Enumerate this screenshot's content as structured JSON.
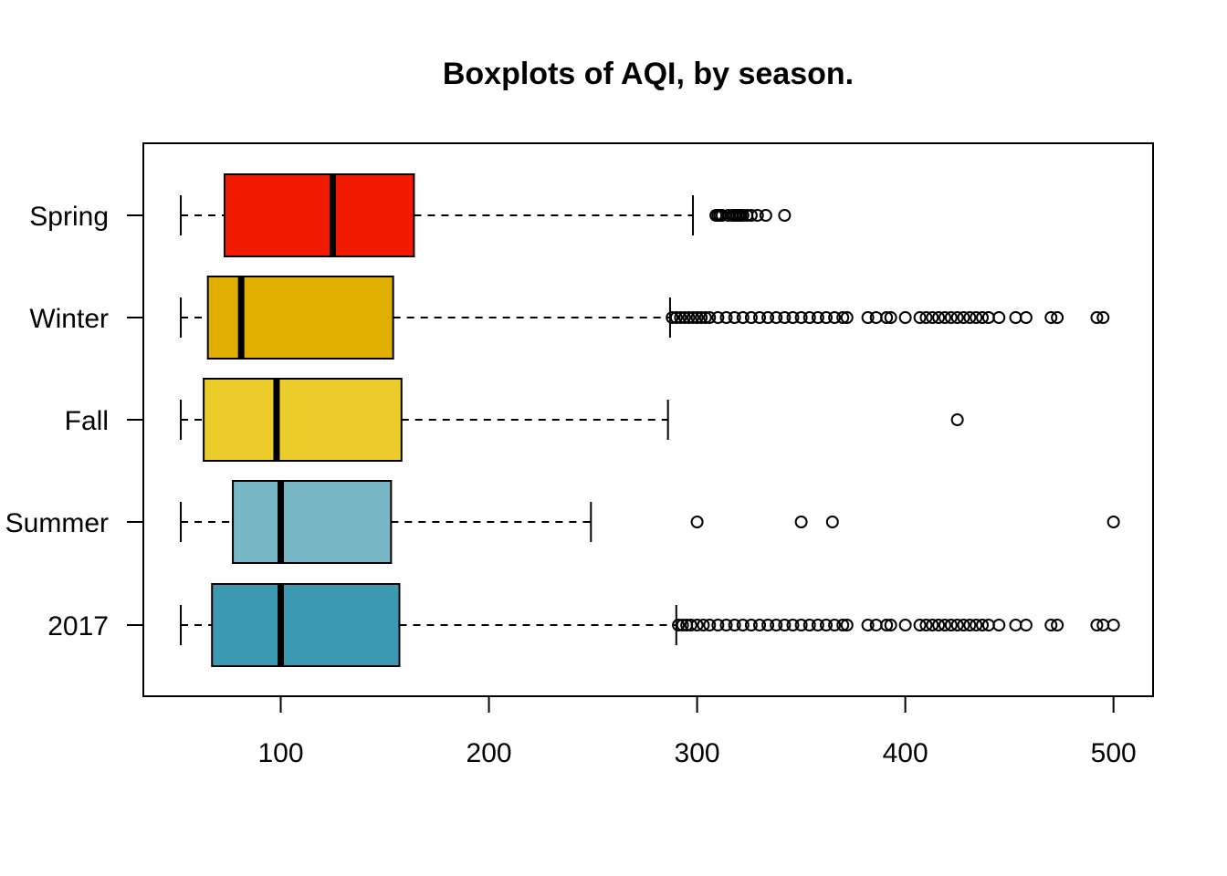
{
  "chart_data": {
    "type": "boxplot",
    "orientation": "horizontal",
    "title": "Boxplots of AQI, by season.",
    "xlabel": "",
    "ylabel": "",
    "xlim": [
      34,
      519
    ],
    "x_ticks": [
      100,
      200,
      300,
      400,
      500
    ],
    "x_tick_labels": [
      "100",
      "200",
      "300",
      "400",
      "500"
    ],
    "grid": false,
    "legend": "none",
    "categories": [
      "Spring",
      "Winter",
      "Fall",
      "Summer",
      "2017"
    ],
    "series": [
      {
        "name": "Spring",
        "color": "#F21A00",
        "whisker_low": 52,
        "q1": 73,
        "median": 125,
        "q3": 164,
        "whisker_high": 298,
        "outliers": [
          309,
          310,
          311,
          312,
          315,
          317,
          318,
          319,
          320,
          321,
          322,
          324,
          326,
          329,
          333,
          342
        ]
      },
      {
        "name": "Winter",
        "color": "#E1AF00",
        "whisker_low": 52,
        "q1": 65,
        "median": 81,
        "q3": 154,
        "whisker_high": 287,
        "outliers": [
          288,
          290,
          292,
          294,
          296,
          298,
          300,
          302,
          304,
          306,
          310,
          314,
          318,
          322,
          326,
          330,
          334,
          338,
          342,
          346,
          350,
          354,
          358,
          362,
          366,
          370,
          372,
          382,
          386,
          391,
          393,
          400,
          407,
          410,
          413,
          416,
          419,
          422,
          425,
          428,
          431,
          434,
          437,
          440,
          445,
          453,
          458,
          470,
          473,
          492,
          495
        ]
      },
      {
        "name": "Fall",
        "color": "#EBCC2A",
        "whisker_low": 52,
        "q1": 63,
        "median": 98,
        "q3": 158,
        "whisker_high": 286,
        "outliers": [
          425
        ]
      },
      {
        "name": "Summer",
        "color": "#78B7C5",
        "whisker_low": 52,
        "q1": 77,
        "median": 100,
        "q3": 153,
        "whisker_high": 249,
        "outliers": [
          300,
          350,
          365,
          500
        ]
      },
      {
        "name": "2017",
        "color": "#3B9AB2",
        "whisker_low": 52,
        "q1": 67,
        "median": 100,
        "q3": 157,
        "whisker_high": 290,
        "outliers": [
          291,
          293,
          295,
          297,
          300,
          303,
          306,
          310,
          314,
          318,
          322,
          326,
          330,
          334,
          338,
          342,
          346,
          350,
          354,
          358,
          362,
          366,
          370,
          372,
          382,
          386,
          391,
          393,
          400,
          407,
          410,
          413,
          416,
          419,
          422,
          425,
          428,
          431,
          434,
          437,
          440,
          445,
          453,
          458,
          470,
          473,
          492,
          495,
          500
        ]
      }
    ]
  }
}
